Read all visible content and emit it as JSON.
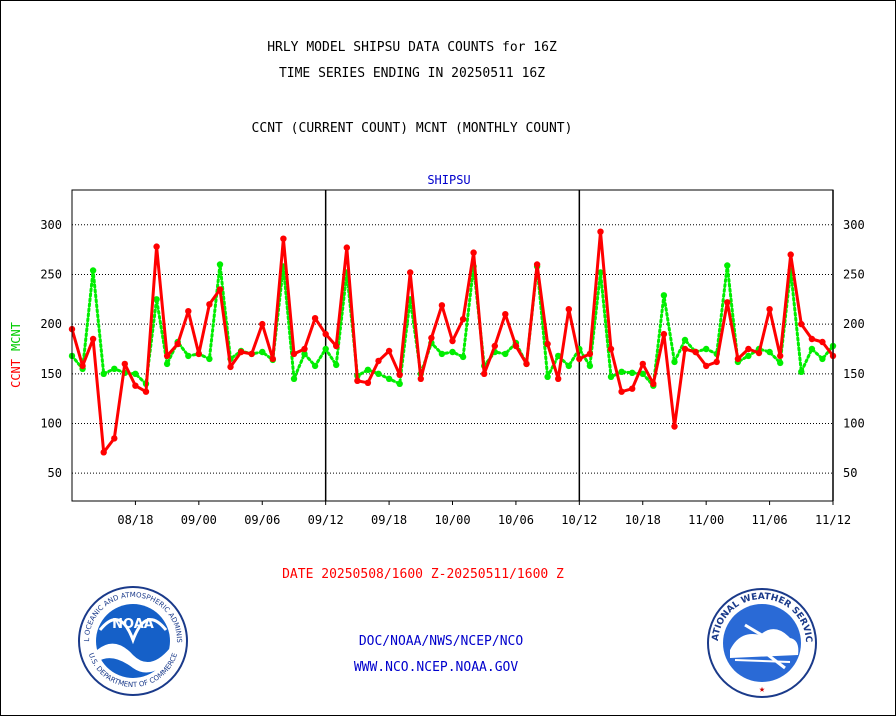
{
  "header": {
    "line1": "HRLY MODEL SHIPSU DATA COUNTS for 16Z",
    "line2": "TIME SERIES ENDING IN 20250511 16Z",
    "line3": "CCNT (CURRENT COUNT) MCNT (MONTHLY COUNT)"
  },
  "chart_data": {
    "type": "line",
    "title": "SHIPSU",
    "xlabel": "DATE 20250508/1600 Z-20250511/1600 Z",
    "ylabel_left": [
      "CCNT",
      "MCNT"
    ],
    "xtick_labels": [
      "08/18",
      "09/00",
      "09/06",
      "09/12",
      "09/18",
      "10/00",
      "10/06",
      "10/12",
      "10/18",
      "11/00",
      "11/06",
      "11/12"
    ],
    "yticks": [
      50,
      100,
      150,
      200,
      250,
      300
    ],
    "ylim": [
      22,
      335
    ],
    "grid": "horizontal dotted",
    "day_boundaries": [
      "09/12",
      "10/12",
      "11/12"
    ],
    "x_hours": [
      12,
      13,
      14,
      15,
      16,
      17,
      18,
      19,
      20,
      21,
      22,
      23,
      24,
      25,
      26,
      27,
      28,
      29,
      30,
      31,
      32,
      33,
      34,
      35,
      36,
      37,
      38,
      39,
      40,
      41,
      42,
      43,
      44,
      45,
      46,
      47,
      48,
      49,
      50,
      51,
      52,
      53,
      54,
      55,
      56,
      57,
      58,
      59,
      60,
      61,
      62,
      63,
      64,
      65,
      66,
      67,
      68,
      69,
      70,
      71,
      72,
      73,
      74,
      75,
      76,
      77,
      78,
      79,
      80,
      81,
      82,
      83,
      84
    ],
    "series": [
      {
        "name": "CCNT",
        "color": "#ff0000",
        "style": "solid",
        "values": [
          195,
          158,
          185,
          71,
          85,
          160,
          138,
          132,
          278,
          168,
          180,
          213,
          170,
          220,
          235,
          157,
          172,
          170,
          200,
          165,
          286,
          170,
          175,
          206,
          190,
          178,
          277,
          143,
          141,
          163,
          173,
          149,
          252,
          145,
          186,
          219,
          183,
          205,
          272,
          150,
          178,
          210,
          178,
          160,
          260,
          180,
          145,
          215,
          165,
          170,
          293,
          175,
          132,
          135,
          160,
          140,
          190,
          97,
          175,
          172,
          158,
          162,
          222,
          165,
          175,
          171,
          215,
          168,
          270,
          200,
          185,
          182,
          168
        ]
      },
      {
        "name": "MCNT",
        "color": "#00ee00",
        "style": "dotted",
        "values": [
          168,
          155,
          254,
          150,
          155,
          151,
          150,
          140,
          225,
          160,
          182,
          168,
          170,
          165,
          260,
          165,
          173,
          170,
          172,
          164,
          258,
          145,
          170,
          158,
          175,
          159,
          252,
          148,
          154,
          150,
          145,
          140,
          225,
          150,
          181,
          170,
          172,
          167,
          258,
          158,
          172,
          170,
          181,
          160,
          258,
          147,
          168,
          158,
          175,
          158,
          252,
          147,
          152,
          151,
          150,
          138,
          229,
          162,
          184,
          172,
          175,
          170,
          259,
          162,
          168,
          175,
          172,
          161,
          254,
          152,
          175,
          165,
          178
        ]
      }
    ]
  },
  "footer": {
    "org_line1": "DOC/NOAA/NWS/NCEP/NCO",
    "org_line2": "WWW.NCO.NCEP.NOAA.GOV"
  },
  "logos": {
    "noaa_text": "NOAA",
    "noaa_ring": "NATIONAL OCEANIC AND ATMOSPHERIC ADMINISTRATION",
    "noaa_ring_bottom": "U.S. DEPARTMENT OF COMMERCE",
    "nws_ring": "NATIONAL WEATHER SERVICE"
  }
}
